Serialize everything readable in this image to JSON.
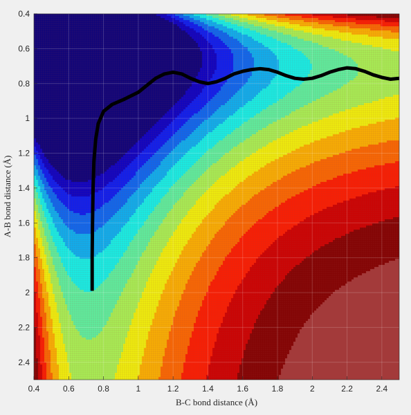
{
  "chart_data": {
    "type": "contour",
    "title": "",
    "xlabel": "B-C bond distance (Å)",
    "ylabel": "A-B bond distance (Å)",
    "xlim": [
      0.4,
      2.5
    ],
    "ylim": [
      0.4,
      2.5
    ],
    "y_reversed": true,
    "x_ticks": [
      0.4,
      0.6,
      0.8,
      1,
      1.2,
      1.4,
      1.6,
      1.8,
      2,
      2.2,
      2.4
    ],
    "y_ticks": [
      0.4,
      0.6,
      0.8,
      1,
      1.2,
      1.4,
      1.6,
      1.8,
      2,
      2.2,
      2.4
    ],
    "x_tick_labels": [
      "0.4",
      "0.6",
      "0.8",
      "1",
      "1.2",
      "1.4",
      "1.6",
      "1.8",
      "2",
      "2.2",
      "2.4"
    ],
    "y_tick_labels": [
      "0.4",
      "0.6",
      "0.8",
      "1",
      "1.2",
      "1.4",
      "1.6",
      "1.8",
      "2",
      "2.2",
      "2.4"
    ],
    "grid": true,
    "colormap": "jet",
    "trajectory": {
      "color": "#000000",
      "x": [
        0.735,
        0.735,
        0.737,
        0.74,
        0.745,
        0.755,
        0.77,
        0.8,
        0.85,
        0.92,
        1.0,
        1.05,
        1.1,
        1.15,
        1.2,
        1.25,
        1.3,
        1.35,
        1.4,
        1.45,
        1.5,
        1.55,
        1.6,
        1.65,
        1.7,
        1.75,
        1.8,
        1.85,
        1.9,
        1.95,
        2.0,
        2.05,
        2.1,
        2.15,
        2.2,
        2.25,
        2.3,
        2.35,
        2.4,
        2.45,
        2.5
      ],
      "y": [
        1.99,
        1.8,
        1.6,
        1.4,
        1.25,
        1.12,
        1.03,
        0.96,
        0.92,
        0.89,
        0.85,
        0.81,
        0.77,
        0.745,
        0.735,
        0.745,
        0.77,
        0.79,
        0.8,
        0.79,
        0.77,
        0.745,
        0.73,
        0.72,
        0.715,
        0.72,
        0.735,
        0.755,
        0.77,
        0.775,
        0.77,
        0.755,
        0.735,
        0.72,
        0.71,
        0.715,
        0.73,
        0.75,
        0.765,
        0.775,
        0.77
      ]
    }
  }
}
